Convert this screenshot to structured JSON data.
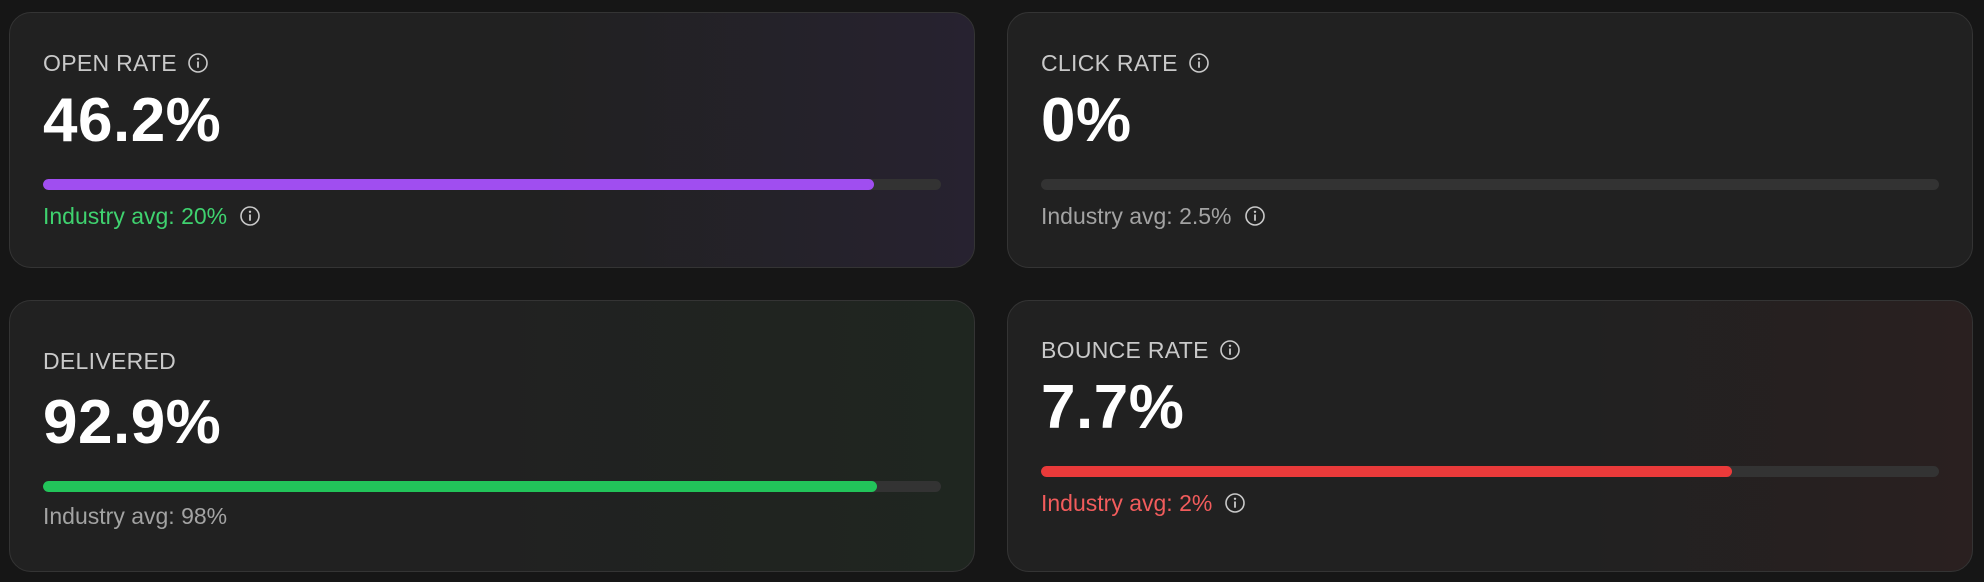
{
  "cards": [
    {
      "label": "OPEN RATE",
      "value": "46.2%",
      "progress_fraction": 0.925,
      "progress_color": "#a04ef0",
      "avg_text": "Industry avg: 20%",
      "avg_color": "#3fd26f",
      "label_icon": "info-icon",
      "avg_icon": "info-icon"
    },
    {
      "label": "CLICK RATE",
      "value": "0%",
      "progress_fraction": 0,
      "avg_text": "Industry avg: 2.5%",
      "avg_color": "#a3a3a3",
      "label_icon": "info-icon",
      "avg_icon": "info-icon"
    },
    {
      "label": "DELIVERED",
      "value": "92.9%",
      "progress_fraction": 0.929,
      "progress_color": "#22c45a",
      "avg_text": "Industry avg: 98%",
      "avg_color": "#a3a3a3"
    },
    {
      "label": "BOUNCE RATE",
      "value": "7.7%",
      "progress_fraction": 0.77,
      "progress_color": "#ea3a3a",
      "avg_text": "Industry avg: 2%",
      "avg_color": "#f25c5c",
      "label_icon": "info-icon",
      "avg_icon": "info-icon"
    }
  ]
}
